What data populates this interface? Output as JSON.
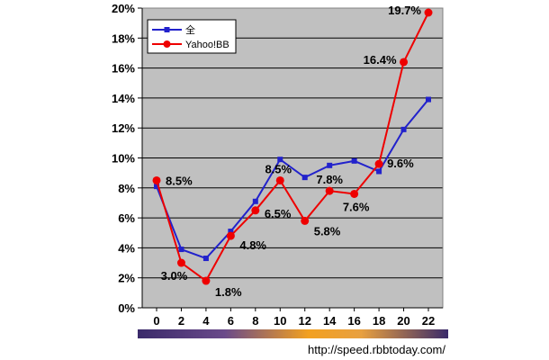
{
  "chart_data": {
    "type": "line",
    "x": [
      0,
      2,
      4,
      6,
      8,
      10,
      12,
      14,
      16,
      18,
      20,
      22
    ],
    "xticks": [
      "0",
      "2",
      "4",
      "6",
      "8",
      "10",
      "12",
      "14",
      "16",
      "18",
      "20",
      "22"
    ],
    "ylim": [
      0,
      20
    ],
    "yticks": [
      "0%",
      "2%",
      "4%",
      "6%",
      "8%",
      "10%",
      "12%",
      "14%",
      "16%",
      "18%",
      "20%"
    ],
    "grid": true,
    "legend_position": "top-left",
    "series": [
      {
        "name": "全",
        "color": "#2222cc",
        "marker": "square",
        "x": [
          0,
          2,
          4,
          6,
          8,
          10,
          12,
          14,
          16,
          18,
          20,
          22
        ],
        "values": [
          8.1,
          3.9,
          3.3,
          5.1,
          7.1,
          9.9,
          8.7,
          9.5,
          9.8,
          9.1,
          11.9,
          13.9
        ]
      },
      {
        "name": "Yahoo!BB",
        "color": "#ee0000",
        "marker": "circle",
        "x": [
          0,
          2,
          4,
          6,
          8,
          10,
          12,
          14,
          16,
          18,
          20,
          22
        ],
        "values": [
          8.5,
          3.0,
          1.8,
          4.8,
          6.5,
          8.5,
          5.8,
          7.8,
          7.6,
          9.6,
          16.4,
          19.7
        ]
      }
    ],
    "data_labels": [
      {
        "x": 0,
        "y": 8.5,
        "text": "8.5%"
      },
      {
        "x": 2,
        "y": 3.0,
        "text": "3.0%"
      },
      {
        "x": 4,
        "y": 1.8,
        "text": "1.8%"
      },
      {
        "x": 6,
        "y": 4.8,
        "text": "4.8%"
      },
      {
        "x": 8,
        "y": 6.5,
        "text": "6.5%"
      },
      {
        "x": 10,
        "y": 8.5,
        "text": "8.5%"
      },
      {
        "x": 12,
        "y": 5.8,
        "text": "5.8%"
      },
      {
        "x": 14,
        "y": 7.8,
        "text": "7.8%"
      },
      {
        "x": 16,
        "y": 7.6,
        "text": "7.6%"
      },
      {
        "x": 18,
        "y": 9.6,
        "text": "9.6%"
      },
      {
        "x": 20,
        "y": 16.4,
        "text": "16.4%"
      },
      {
        "x": 22,
        "y": 19.7,
        "text": "19.7%"
      }
    ],
    "plot_background": "#c0c0c0",
    "source_text": "http://speed.rbbtoday.com/"
  }
}
